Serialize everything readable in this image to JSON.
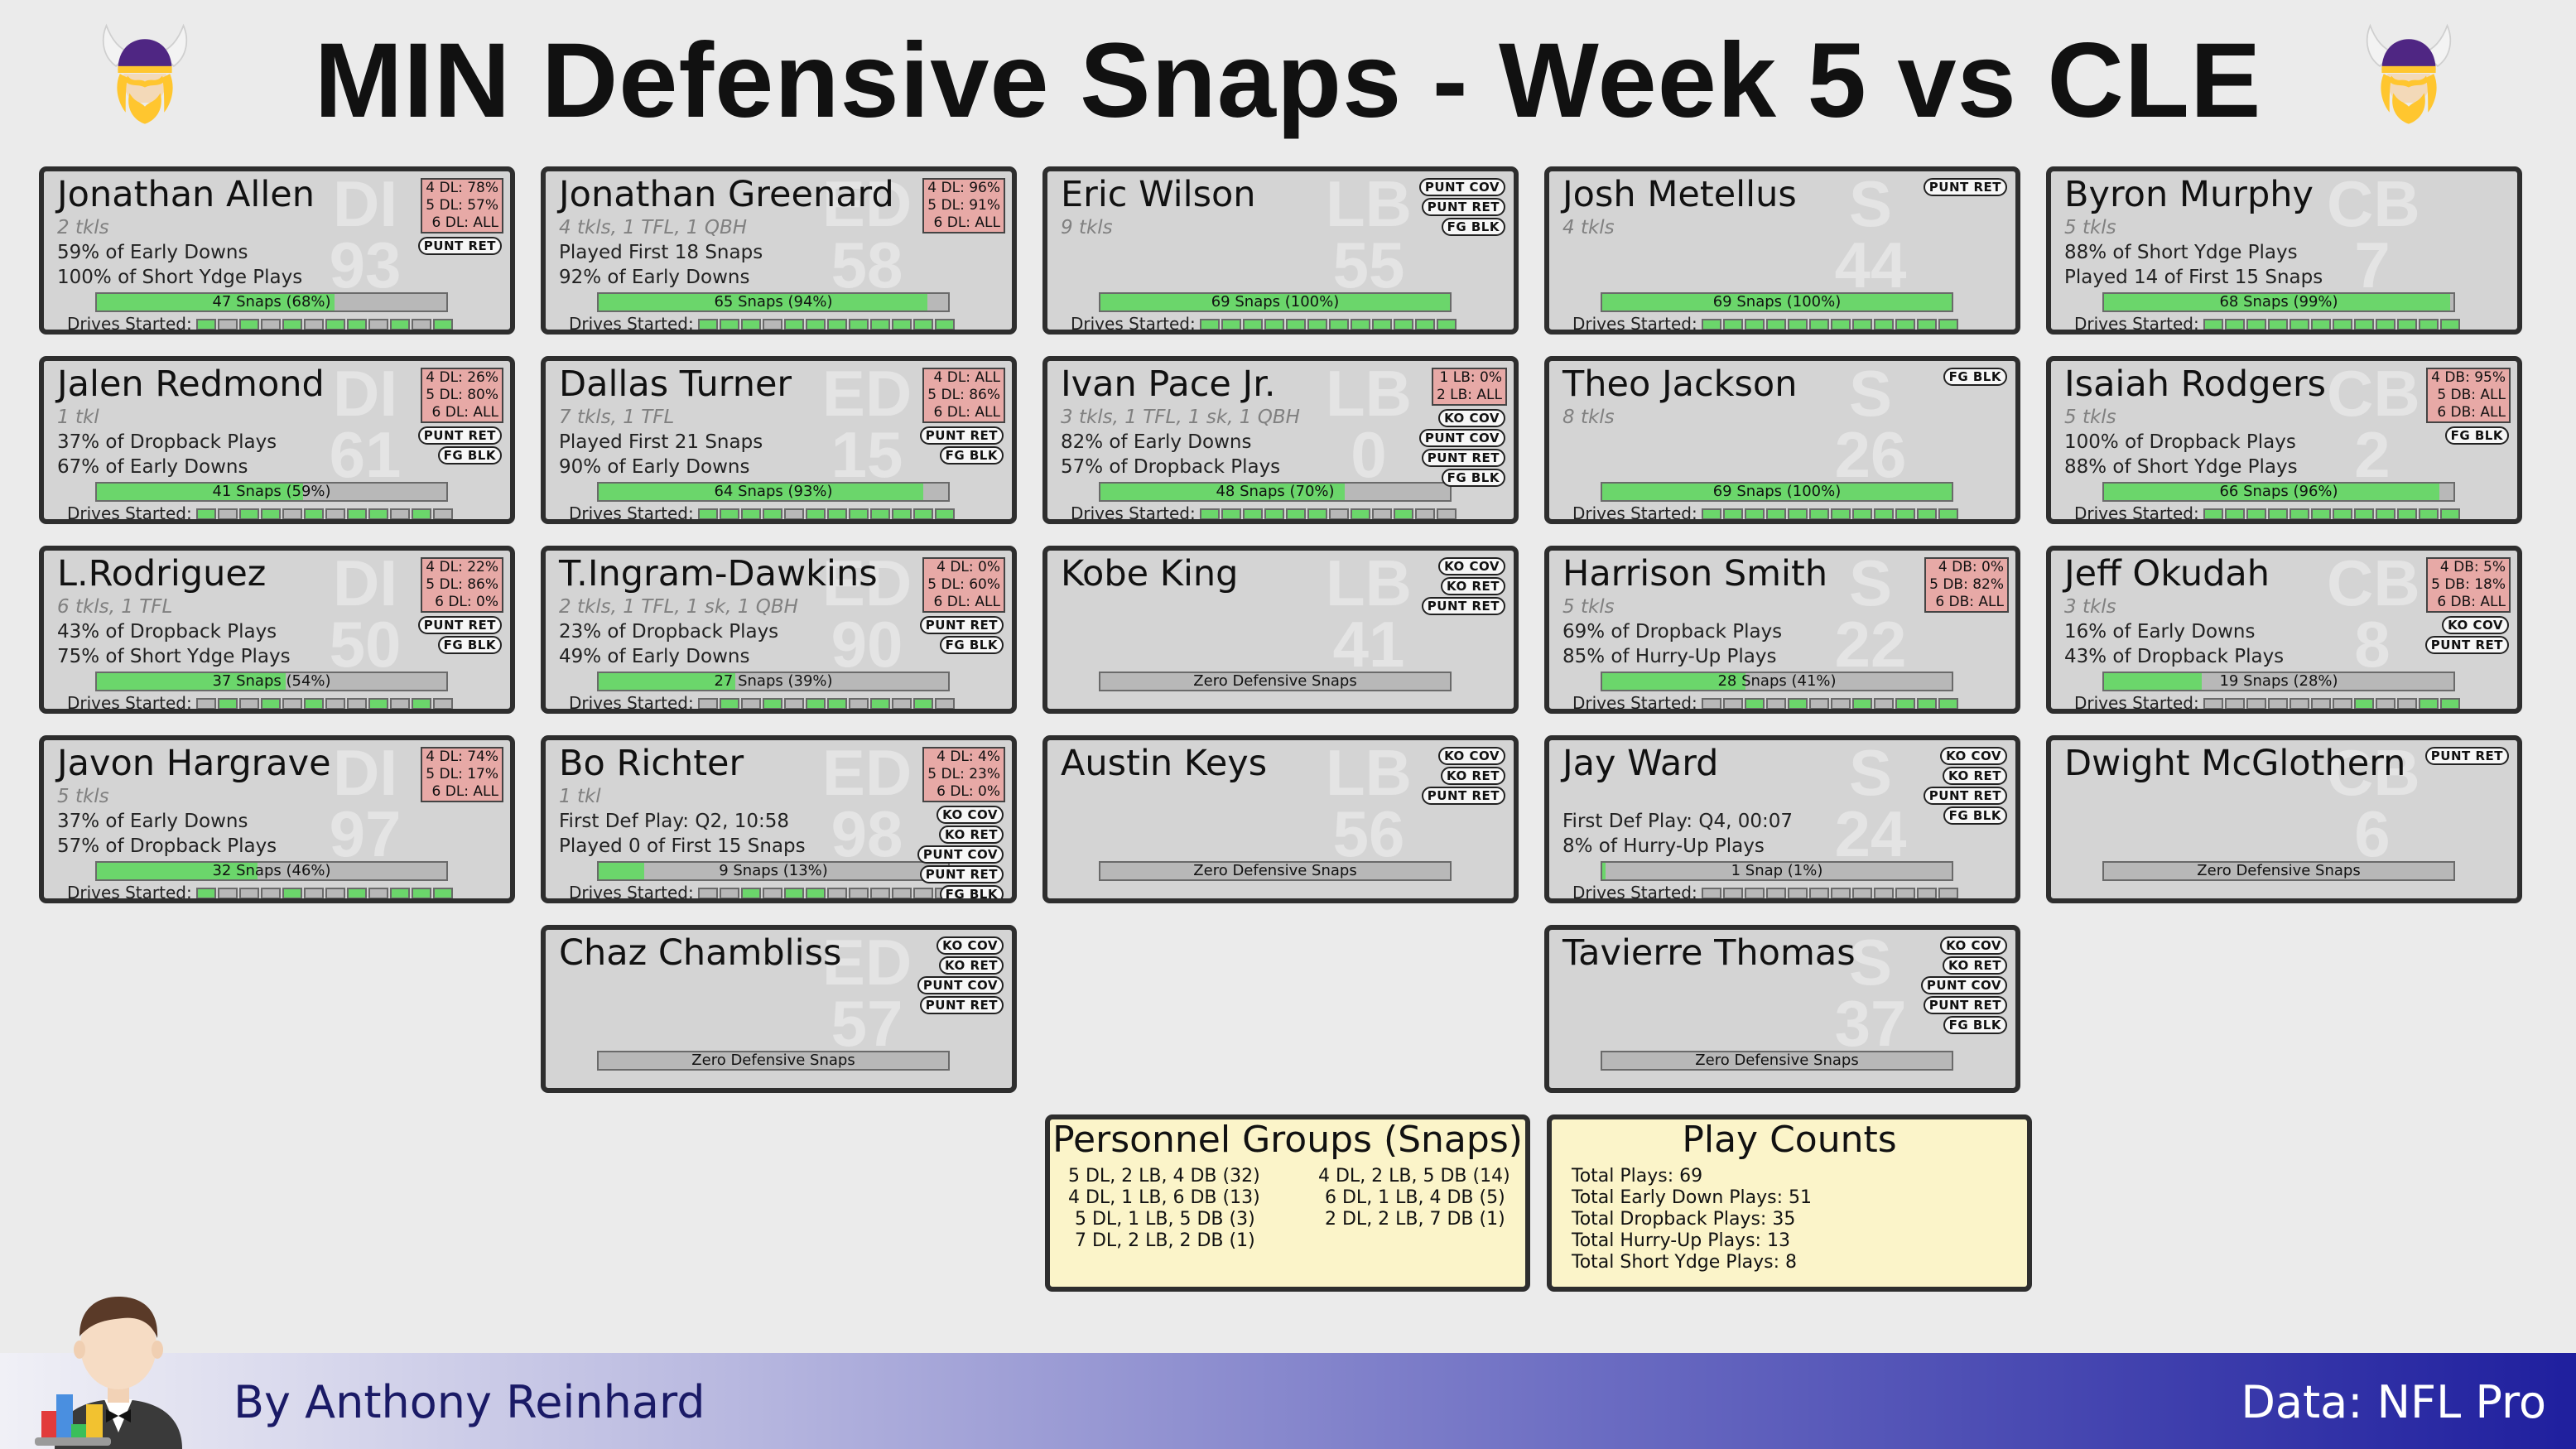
{
  "title": "MIN Defensive Snaps - Week 5 vs CLE",
  "cards": [
    {
      "name": "Jonathan Allen",
      "pos": "DI",
      "num": "93",
      "tkls": "2 tkls",
      "stats": [
        "59% of Early Downs",
        "100% of Short Ydge Plays"
      ],
      "snaps": "47 Snaps (68%)",
      "snap_pct": 0.68,
      "drives_label": "Drives Started:",
      "drives": [
        1,
        0,
        1,
        0,
        1,
        0,
        1,
        1,
        0,
        1,
        0,
        1
      ],
      "pkg": [
        "4 DL: 78%",
        "5 DL: 57%",
        "6 DL: ALL"
      ],
      "st": [
        "PUNT RET"
      ]
    },
    {
      "name": "Jonathan Greenard",
      "pos": "ED",
      "num": "58",
      "tkls": "4 tkls, 1 TFL, 1 QBH",
      "stats": [
        "Played First 18 Snaps",
        "92% of Early Downs"
      ],
      "snaps": "65 Snaps (94%)",
      "snap_pct": 0.94,
      "drives_label": "Drives Started:",
      "drives": [
        1,
        1,
        1,
        0,
        1,
        1,
        1,
        1,
        1,
        1,
        1,
        1
      ],
      "pkg": [
        "4 DL: 96%",
        "5 DL: 91%",
        "6 DL: ALL"
      ],
      "st": []
    },
    {
      "name": "Eric Wilson",
      "pos": "LB",
      "num": "55",
      "tkls": "9 tkls",
      "stats": [
        "",
        ""
      ],
      "snaps": "69 Snaps (100%)",
      "snap_pct": 1.0,
      "drives_label": "Drives Started:",
      "drives": [
        1,
        1,
        1,
        1,
        1,
        1,
        1,
        1,
        1,
        1,
        1,
        1
      ],
      "pkg": [],
      "st": [
        "PUNT COV",
        "PUNT RET",
        "FG BLK"
      ]
    },
    {
      "name": "Josh Metellus",
      "pos": "S",
      "num": "44",
      "tkls": "4 tkls",
      "stats": [
        "",
        ""
      ],
      "snaps": "69 Snaps (100%)",
      "snap_pct": 1.0,
      "drives_label": "Drives Started:",
      "drives": [
        1,
        1,
        1,
        1,
        1,
        1,
        1,
        1,
        1,
        1,
        1,
        1
      ],
      "pkg": [],
      "st": [
        "PUNT RET"
      ]
    },
    {
      "name": "Byron Murphy",
      "pos": "CB",
      "num": "7",
      "tkls": "5 tkls",
      "stats": [
        "88% of Short Ydge Plays",
        "Played 14 of First 15 Snaps"
      ],
      "snaps": "68 Snaps (99%)",
      "snap_pct": 0.99,
      "drives_label": "Drives Started:",
      "drives": [
        1,
        1,
        1,
        1,
        1,
        1,
        1,
        1,
        1,
        1,
        1,
        1
      ],
      "pkg": [],
      "st": []
    },
    {
      "name": "Jalen Redmond",
      "pos": "DI",
      "num": "61",
      "tkls": "1 tkl",
      "stats": [
        "37% of Dropback Plays",
        "67% of Early Downs"
      ],
      "snaps": "41 Snaps (59%)",
      "snap_pct": 0.59,
      "drives_label": "Drives Started:",
      "drives": [
        1,
        0,
        1,
        1,
        0,
        1,
        0,
        1,
        1,
        0,
        1,
        0
      ],
      "pkg": [
        "4 DL: 26%",
        "5 DL: 80%",
        "6 DL: ALL"
      ],
      "st": [
        "PUNT RET",
        "FG BLK"
      ]
    },
    {
      "name": "Dallas Turner",
      "pos": "ED",
      "num": "15",
      "tkls": "7 tkls, 1 TFL",
      "stats": [
        "Played First 21 Snaps",
        "90% of Early Downs"
      ],
      "snaps": "64 Snaps (93%)",
      "snap_pct": 0.93,
      "drives_label": "Drives Started:",
      "drives": [
        1,
        1,
        1,
        1,
        0,
        1,
        1,
        1,
        1,
        1,
        1,
        1
      ],
      "pkg": [
        "4 DL: ALL",
        "5 DL: 86%",
        "6 DL: ALL"
      ],
      "st": [
        "PUNT RET",
        "FG BLK"
      ]
    },
    {
      "name": "Ivan Pace Jr.",
      "pos": "LB",
      "num": "0",
      "tkls": "3 tkls, 1 TFL, 1 sk, 1 QBH",
      "stats": [
        "82% of Early Downs",
        "57% of Dropback Plays"
      ],
      "snaps": "48 Snaps (70%)",
      "snap_pct": 0.7,
      "drives_label": "Drives Started:",
      "drives": [
        1,
        1,
        1,
        1,
        1,
        1,
        0,
        1,
        0,
        1,
        0,
        0
      ],
      "pkg": [
        "1 LB:  0%",
        "2 LB: ALL"
      ],
      "st": [
        "KO COV",
        "PUNT COV",
        "PUNT RET",
        "FG BLK"
      ]
    },
    {
      "name": "Theo Jackson",
      "pos": "S",
      "num": "26",
      "tkls": "8 tkls",
      "stats": [
        "",
        ""
      ],
      "snaps": "69 Snaps (100%)",
      "snap_pct": 1.0,
      "drives_label": "Drives Started:",
      "drives": [
        1,
        1,
        1,
        1,
        1,
        1,
        1,
        1,
        1,
        1,
        1,
        1
      ],
      "pkg": [],
      "st": [
        "FG BLK"
      ]
    },
    {
      "name": "Isaiah Rodgers",
      "pos": "CB",
      "num": "2",
      "tkls": "5 tkls",
      "stats": [
        "100% of Dropback Plays",
        "88% of Short Ydge Plays"
      ],
      "snaps": "66 Snaps (96%)",
      "snap_pct": 0.96,
      "drives_label": "Drives Started:",
      "drives": [
        1,
        1,
        1,
        1,
        1,
        1,
        1,
        1,
        1,
        1,
        1,
        1
      ],
      "pkg": [
        "4 DB: 95%",
        "5 DB: ALL",
        "6 DB: ALL"
      ],
      "st": [
        "FG BLK"
      ]
    },
    {
      "name": "L.Rodriguez",
      "pos": "DI",
      "num": "50",
      "tkls": "6 tkls, 1 TFL",
      "stats": [
        "43% of Dropback Plays",
        "75% of Short Ydge Plays"
      ],
      "snaps": "37 Snaps (54%)",
      "snap_pct": 0.54,
      "drives_label": "Drives Started:",
      "drives": [
        0,
        1,
        0,
        1,
        0,
        1,
        0,
        0,
        1,
        0,
        1,
        0
      ],
      "pkg": [
        "4 DL: 22%",
        "5 DL: 86%",
        "6 DL:  0%"
      ],
      "st": [
        "PUNT RET",
        "FG BLK"
      ]
    },
    {
      "name": "T.Ingram-Dawkins",
      "pos": "ED",
      "num": "90",
      "tkls": "2 tkls, 1 TFL, 1 sk, 1 QBH",
      "stats": [
        "23% of Dropback Plays",
        "49% of Early Downs"
      ],
      "snaps": "27 Snaps (39%)",
      "snap_pct": 0.39,
      "drives_label": "Drives Started:",
      "drives": [
        0,
        1,
        0,
        1,
        0,
        1,
        1,
        0,
        1,
        0,
        1,
        0
      ],
      "pkg": [
        "4 DL:  0%",
        "5 DL: 60%",
        "6 DL: ALL"
      ],
      "st": [
        "PUNT RET",
        "FG BLK"
      ]
    },
    {
      "name": "Kobe King",
      "pos": "LB",
      "num": "41",
      "tkls": "",
      "stats": [
        "",
        ""
      ],
      "snaps": "Zero Defensive Snaps",
      "snap_pct": 0,
      "drives_label": "",
      "drives": [],
      "pkg": [],
      "st": [
        "KO COV",
        "KO RET",
        "PUNT RET"
      ]
    },
    {
      "name": "Harrison Smith",
      "pos": "S",
      "num": "22",
      "tkls": "5 tkls",
      "stats": [
        "69% of Dropback Plays",
        "85% of Hurry-Up Plays"
      ],
      "snaps": "28 Snaps (41%)",
      "snap_pct": 0.41,
      "drives_label": "Drives Started:",
      "drives": [
        0,
        0,
        1,
        0,
        1,
        0,
        0,
        1,
        0,
        1,
        1,
        1
      ],
      "pkg": [
        "4 DB:  0%",
        "5 DB: 82%",
        "6 DB: ALL"
      ],
      "st": []
    },
    {
      "name": "Jeff Okudah",
      "pos": "CB",
      "num": "8",
      "tkls": "3 tkls",
      "stats": [
        "16% of Early Downs",
        "43% of Dropback Plays"
      ],
      "snaps": "19 Snaps (28%)",
      "snap_pct": 0.28,
      "drives_label": "Drives Started:",
      "drives": [
        0,
        0,
        0,
        0,
        0,
        0,
        0,
        1,
        0,
        0,
        1,
        1
      ],
      "pkg": [
        "4 DB:  5%",
        "5 DB: 18%",
        "6 DB: ALL"
      ],
      "st": [
        "KO COV",
        "PUNT RET"
      ]
    },
    {
      "name": "Javon Hargrave",
      "pos": "DI",
      "num": "97",
      "tkls": "5 tkls",
      "stats": [
        "37% of Early Downs",
        "57% of Dropback Plays"
      ],
      "snaps": "32 Snaps (46%)",
      "snap_pct": 0.46,
      "drives_label": "Drives Started:",
      "drives": [
        1,
        0,
        0,
        0,
        1,
        0,
        0,
        1,
        0,
        1,
        1,
        1
      ],
      "pkg": [
        "4 DL: 74%",
        "5 DL: 17%",
        "6 DL: ALL"
      ],
      "st": []
    },
    {
      "name": "Bo Richter",
      "pos": "ED",
      "num": "98",
      "tkls": "1 tkl",
      "stats": [
        "First Def Play: Q2, 10:58",
        "Played 0 of First 15 Snaps"
      ],
      "snaps": "9 Snaps (13%)",
      "snap_pct": 0.13,
      "drives_label": "Drives Started:",
      "drives": [
        0,
        0,
        1,
        0,
        1,
        1,
        0,
        0,
        0,
        0,
        0,
        0
      ],
      "pkg": [
        "4 DL:  4%",
        "5 DL: 23%",
        "6 DL:  0%"
      ],
      "st": [
        "KO COV",
        "KO RET",
        "PUNT COV",
        "PUNT RET",
        "FG BLK"
      ]
    },
    {
      "name": "Austin Keys",
      "pos": "LB",
      "num": "56",
      "tkls": "",
      "stats": [
        "",
        ""
      ],
      "snaps": "Zero Defensive Snaps",
      "snap_pct": 0,
      "drives_label": "",
      "drives": [],
      "pkg": [],
      "st": [
        "KO COV",
        "KO RET",
        "PUNT RET"
      ]
    },
    {
      "name": "Jay Ward",
      "pos": "S",
      "num": "24",
      "tkls": "",
      "stats": [
        "First Def Play: Q4, 00:07",
        "8% of Hurry-Up Plays"
      ],
      "snaps": "1 Snap (1%)",
      "snap_pct": 0.01,
      "drives_label": "Drives Started:",
      "drives": [
        0,
        0,
        0,
        0,
        0,
        0,
        0,
        0,
        0,
        0,
        0,
        0
      ],
      "pkg": [],
      "st": [
        "KO COV",
        "KO RET",
        "PUNT RET",
        "FG BLK"
      ]
    },
    {
      "name": "Dwight McGlothern",
      "pos": "CB",
      "num": "6",
      "tkls": "",
      "stats": [
        "",
        ""
      ],
      "snaps": "Zero Defensive Snaps",
      "snap_pct": 0,
      "drives_label": "",
      "drives": [],
      "pkg": [],
      "st": [
        "PUNT RET"
      ]
    },
    {
      "name": "Chaz Chambliss",
      "pos": "ED",
      "num": "57",
      "tkls": "",
      "stats": [
        "",
        ""
      ],
      "snaps": "Zero Defensive Snaps",
      "snap_pct": 0,
      "drives_label": "",
      "drives": [],
      "pkg": [],
      "st": [
        "KO COV",
        "KO RET",
        "PUNT COV",
        "PUNT RET"
      ]
    },
    {
      "name": "Tavierre Thomas",
      "pos": "S",
      "num": "37",
      "tkls": "",
      "stats": [
        "",
        ""
      ],
      "snaps": "Zero Defensive Snaps",
      "snap_pct": 0,
      "drives_label": "",
      "drives": [],
      "pkg": [],
      "st": [
        "KO COV",
        "KO RET",
        "PUNT COV",
        "PUNT RET",
        "FG BLK"
      ]
    }
  ],
  "personnel": {
    "title": "Personnel Groups (Snaps)",
    "left": [
      "5 DL, 2 LB, 4 DB (32)",
      "4 DL, 1 LB, 6 DB (13)",
      "5 DL, 1 LB, 5 DB (3)",
      "7 DL, 2 LB, 2 DB (1)"
    ],
    "right": [
      "4 DL, 2 LB, 5 DB (14)",
      "6 DL, 1 LB, 4 DB (5)",
      "2 DL, 2 LB, 7 DB (1)"
    ]
  },
  "play_counts": {
    "title": "Play Counts",
    "items": [
      "Total Plays: 69",
      "Total Early Down Plays: 51",
      "Total Dropback Plays: 35",
      "Total Hurry-Up Plays: 13",
      "Total Short Ydge Plays: 8"
    ]
  },
  "footer": {
    "byline": "By Anthony Reinhard",
    "source": "Data: NFL Pro"
  },
  "colors": {
    "snap_bar_fill": "#6bd66b",
    "package_box": "#e7a9a6",
    "info_box": "#fbf4c9",
    "card_bg": "#d4d4d4",
    "logo_purple": "#4f2683",
    "logo_gold": "#ffc62f"
  },
  "icons": {
    "logo": "vikings-helmet-logo-icon",
    "author": "waiter-with-chart-avatar-icon"
  }
}
